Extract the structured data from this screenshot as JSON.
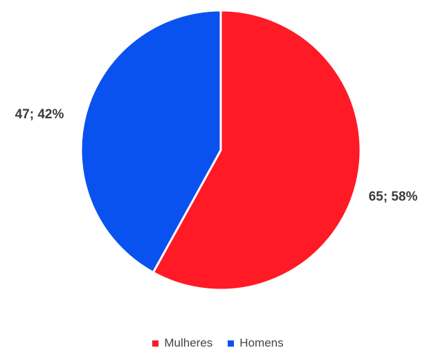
{
  "chart_data": {
    "type": "pie",
    "title": "",
    "start_angle_deg": 0,
    "direction": "clockwise",
    "legend_position": "bottom",
    "slices": [
      {
        "label": "Mulheres",
        "value": 65,
        "percent": "58%",
        "data_label": "65; 58%",
        "color": "#ff1a26"
      },
      {
        "label": "Homens",
        "value": 47,
        "percent": "42%",
        "data_label": "47; 42%",
        "color": "#0a52f0"
      }
    ]
  },
  "legend": {
    "items": [
      {
        "label": "Mulheres",
        "color": "#ff1a26"
      },
      {
        "label": "Homens",
        "color": "#0a52f0"
      }
    ]
  }
}
